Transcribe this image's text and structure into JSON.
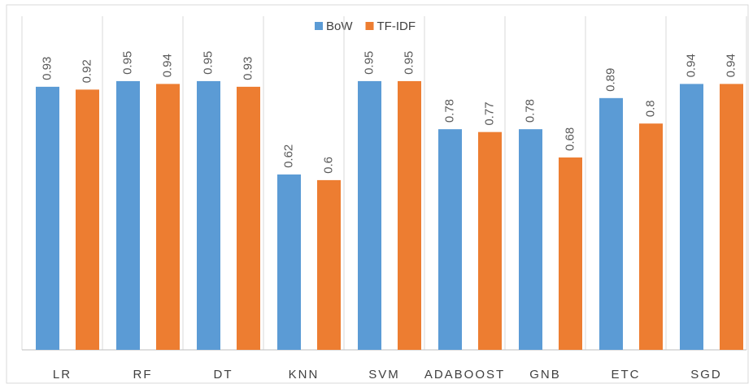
{
  "chart_data": {
    "type": "bar",
    "categories": [
      "LR",
      "RF",
      "DT",
      "KNN",
      "SVM",
      "ADABOOST",
      "GNB",
      "ETC",
      "SGD"
    ],
    "series": [
      {
        "name": "BoW",
        "color": "#5b9bd5",
        "values": [
          0.93,
          0.95,
          0.95,
          0.62,
          0.95,
          0.78,
          0.78,
          0.89,
          0.94
        ]
      },
      {
        "name": "TF-IDF",
        "color": "#ed7d31",
        "values": [
          0.92,
          0.94,
          0.93,
          0.6,
          0.95,
          0.77,
          0.68,
          0.8,
          0.94
        ]
      }
    ],
    "ylim": [
      0,
      1
    ],
    "legend": "top"
  }
}
